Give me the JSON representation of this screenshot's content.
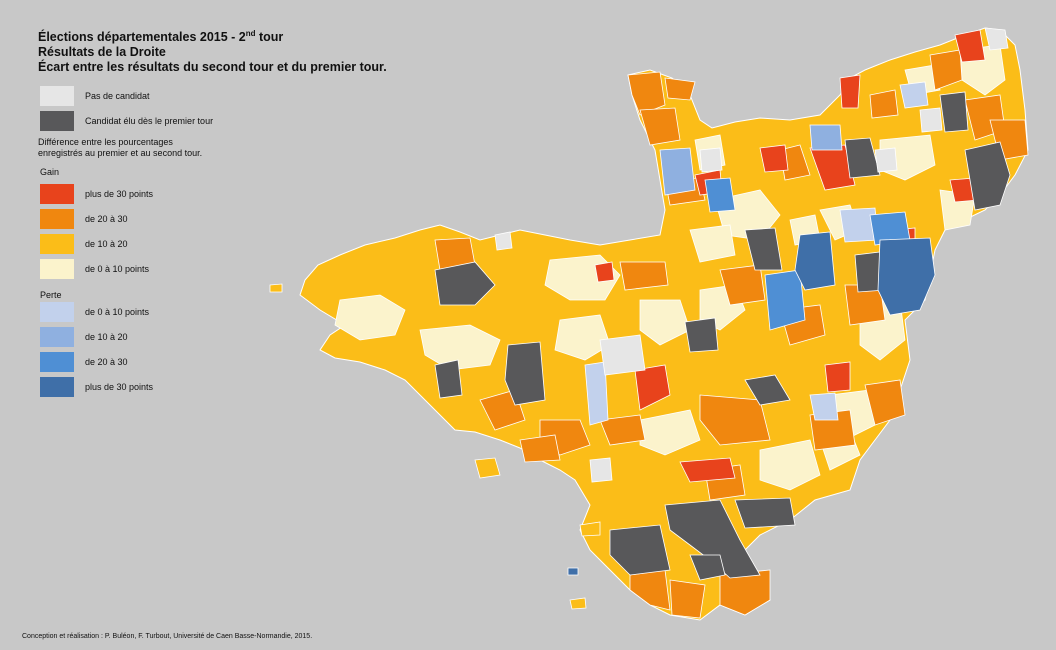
{
  "title": {
    "line1_main": "Élections départementales 2015 - 2",
    "line1_sup": "nd",
    "line1_end": " tour",
    "line2": "Résultats de la Droite",
    "line3": "Écart entre les résultats du second tour et du premier tour."
  },
  "legend": {
    "no_candidate": {
      "label": "Pas de candidat",
      "color": "#e6e6e6"
    },
    "elected_first": {
      "label": "Candidat élu dès le premier tour",
      "color": "#58585a"
    },
    "description_line1": "Différence entre les pourcentages",
    "description_line2": "enregistrés au premier et au second tour.",
    "gain_heading": "Gain",
    "gain": [
      {
        "label": "plus de 30 points",
        "color": "#e8431c"
      },
      {
        "label": "de 20 à 30",
        "color": "#f0870f"
      },
      {
        "label": "de 10 à 20",
        "color": "#fbbd18"
      },
      {
        "label": "de 0 à 10 points",
        "color": "#fbf3cc"
      }
    ],
    "loss_heading": "Perte",
    "loss": [
      {
        "label": "de 0 à 10 points",
        "color": "#c2d1ec"
      },
      {
        "label": "de 10 à 20",
        "color": "#8fb0e0"
      },
      {
        "label": "de 20 à 30",
        "color": "#4f8fd4"
      },
      {
        "label": "plus de 30 points",
        "color": "#3f6fa8"
      }
    ]
  },
  "credit": "Conception et réalisation : P. Buléon, F. Turbout, Université de Caen Basse-Normandie, 2015."
}
